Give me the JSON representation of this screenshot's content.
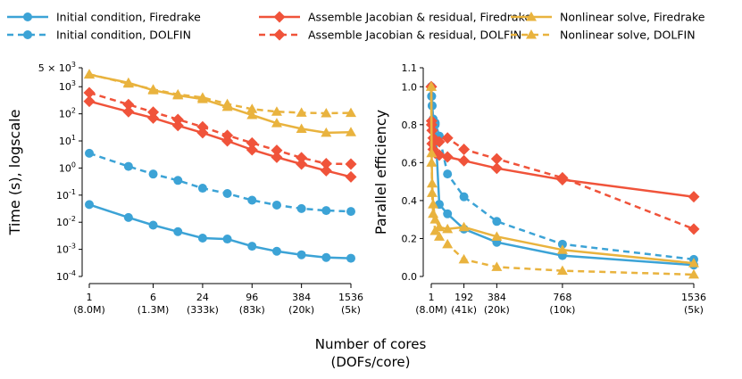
{
  "chart_data": {
    "xlabel_line1": "Number of cores",
    "xlabel_line2": "(DOFs/core)",
    "styles": [
      {
        "key": "ic_fd",
        "color": "#3ca3d6",
        "dash": false,
        "marker": "circle"
      },
      {
        "key": "ic_df",
        "color": "#3ca3d6",
        "dash": true,
        "marker": "circle"
      },
      {
        "key": "as_fd",
        "color": "#f0533a",
        "dash": false,
        "marker": "diamond"
      },
      {
        "key": "as_df",
        "color": "#f0533a",
        "dash": true,
        "marker": "diamond"
      },
      {
        "key": "nl_fd",
        "color": "#e9b33e",
        "dash": false,
        "marker": "triangle"
      },
      {
        "key": "nl_df",
        "color": "#e9b33e",
        "dash": true,
        "marker": "triangle"
      }
    ],
    "legend": [
      {
        "key": "ic_fd",
        "label": "Initial condition, Firedrake"
      },
      {
        "key": "ic_df",
        "label": "Initial condition, DOLFIN"
      },
      {
        "key": "as_fd",
        "label": "Assemble Jacobian & residual, Firedrake"
      },
      {
        "key": "as_df",
        "label": "Assemble Jacobian & residual, DOLFIN"
      },
      {
        "key": "nl_fd",
        "label": "Nonlinear solve, Firedrake"
      },
      {
        "key": "nl_df",
        "label": "Nonlinear solve, DOLFIN"
      }
    ],
    "charts": [
      {
        "type": "line",
        "yscale": "log",
        "ylabel": "Time (s), logscale",
        "xscale": "log2",
        "xlim": [
          1,
          1536
        ],
        "ylim": [
          0.0001,
          5000
        ],
        "xticks": [
          1,
          6,
          24,
          96,
          384,
          1536
        ],
        "xtick_labels": [
          [
            "1",
            "(8.0M)"
          ],
          [
            "6",
            "(1.3M)"
          ],
          [
            "24",
            "(333k)"
          ],
          [
            "96",
            "(83k)"
          ],
          [
            "384",
            "(20k)"
          ],
          [
            "1536",
            "(5k)"
          ]
        ],
        "yticks": [
          0.0001,
          0.001,
          0.01,
          0.1,
          1,
          10,
          100,
          1000,
          5000
        ],
        "ytick_labels": [
          [
            "10",
            "-4"
          ],
          [
            "10",
            "-3"
          ],
          [
            "10",
            "-2"
          ],
          [
            "10",
            "-1"
          ],
          [
            "10",
            "0"
          ],
          [
            "10",
            "1"
          ],
          [
            "10",
            "2"
          ],
          [
            "10",
            "3"
          ],
          [
            "5 × 10",
            "3"
          ]
        ],
        "x": [
          1,
          3,
          6,
          12,
          24,
          48,
          96,
          192,
          384,
          768,
          1536
        ],
        "series": [
          {
            "key": "ic_fd",
            "values": [
              0.045,
              0.015,
              0.0078,
              0.0045,
              0.0026,
              0.0024,
              0.0013,
              0.00085,
              0.00063,
              0.0005,
              0.00047
            ]
          },
          {
            "key": "ic_df",
            "values": [
              3.5,
              1.15,
              0.6,
              0.35,
              0.18,
              0.115,
              0.065,
              0.043,
              0.032,
              0.027,
              0.025
            ]
          },
          {
            "key": "as_fd",
            "values": [
              290,
              120,
              70,
              37,
              20,
              10,
              4.7,
              2.5,
              1.4,
              0.8,
              0.47
            ]
          },
          {
            "key": "as_df",
            "values": [
              600,
              220,
              115,
              62,
              33,
              16,
              8.4,
              4.5,
              2.4,
              1.45,
              1.4
            ]
          },
          {
            "key": "nl_fd",
            "values": [
              2800,
              1400,
              740,
              480,
              350,
              180,
              90,
              45,
              28,
              20,
              21
            ]
          },
          {
            "key": "nl_df",
            "values": [
              2900,
              1300,
              800,
              520,
              400,
              230,
              150,
              120,
              110,
              105,
              108
            ]
          }
        ]
      },
      {
        "type": "line",
        "yscale": "linear",
        "ylabel": "Parallel efficiency",
        "xscale": "linear",
        "xlim": [
          1,
          1536
        ],
        "ylim": [
          0,
          1.1
        ],
        "xticks": [
          1,
          192,
          384,
          768,
          1536
        ],
        "xtick_labels": [
          [
            "1",
            "(8.0M)"
          ],
          [
            "192",
            "(41k)"
          ],
          [
            "384",
            "(20k)"
          ],
          [
            "768",
            "(10k)"
          ],
          [
            "1536",
            "(5k)"
          ]
        ],
        "yticks": [
          0.0,
          0.2,
          0.4,
          0.6,
          0.8,
          1.0,
          1.1
        ],
        "ytick_labels": [
          "0.0",
          "0.2",
          "0.4",
          "0.6",
          "0.8",
          "1.0",
          "1.1"
        ],
        "series": [
          {
            "key": "ic_fd",
            "x": [
              1,
              3,
              6,
              12,
              24,
              48,
              96,
              192,
              384,
              768,
              1536
            ],
            "values": [
              1.0,
              0.95,
              0.9,
              0.82,
              0.8,
              0.38,
              0.33,
              0.25,
              0.18,
              0.11,
              0.06
            ]
          },
          {
            "key": "ic_df",
            "x": [
              1,
              3,
              6,
              12,
              24,
              48,
              96,
              192,
              384,
              768,
              1536
            ],
            "values": [
              1.0,
              0.95,
              0.9,
              0.83,
              0.81,
              0.74,
              0.54,
              0.42,
              0.29,
              0.17,
              0.09
            ]
          },
          {
            "key": "as_fd",
            "x": [
              1,
              3,
              6,
              12,
              24,
              48,
              96,
              192,
              384,
              768,
              1536
            ],
            "values": [
              1.0,
              0.8,
              0.7,
              0.67,
              0.65,
              0.64,
              0.63,
              0.61,
              0.57,
              0.51,
              0.42
            ]
          },
          {
            "key": "as_df",
            "x": [
              1,
              3,
              6,
              12,
              24,
              48,
              96,
              192,
              384,
              768,
              1536
            ],
            "values": [
              1.0,
              0.82,
              0.77,
              0.73,
              0.72,
              0.71,
              0.73,
              0.67,
              0.62,
              0.52,
              0.25
            ]
          },
          {
            "key": "nl_fd",
            "x": [
              1,
              3,
              6,
              12,
              24,
              48,
              96,
              192,
              384,
              768,
              1536
            ],
            "values": [
              1.0,
              0.65,
              0.49,
              0.38,
              0.3,
              0.26,
              0.25,
              0.26,
              0.21,
              0.14,
              0.07
            ]
          },
          {
            "key": "nl_df",
            "x": [
              1,
              3,
              6,
              12,
              24,
              48,
              96,
              192,
              384,
              768,
              1536
            ],
            "values": [
              1.0,
              0.6,
              0.44,
              0.33,
              0.24,
              0.21,
              0.17,
              0.09,
              0.05,
              0.03,
              0.01
            ]
          }
        ]
      }
    ]
  }
}
